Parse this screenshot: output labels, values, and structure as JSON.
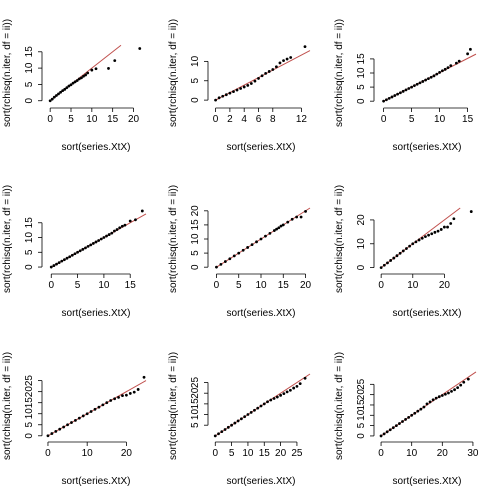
{
  "figure": {
    "background": "#ffffff",
    "point_color": "#000000",
    "line_color": "#c0504d"
  },
  "chart_data": [
    {
      "type": "scatter",
      "xlabel": "sort(series.XtX)",
      "ylabel": "sort(rchisq(n.iter, df = ii))",
      "xlim": [
        -1,
        23
      ],
      "ylim": [
        -1,
        18
      ],
      "xticks": [
        0,
        5,
        10,
        15,
        20
      ],
      "yticks": [
        0,
        5,
        10,
        15
      ],
      "points": [
        [
          0,
          0
        ],
        [
          0.5,
          0.5
        ],
        [
          1,
          1.1
        ],
        [
          1.5,
          1.6
        ],
        [
          2,
          2.1
        ],
        [
          2.5,
          2.6
        ],
        [
          3,
          3.1
        ],
        [
          3.5,
          3.5
        ],
        [
          4,
          4
        ],
        [
          4.5,
          4.5
        ],
        [
          5,
          4.9
        ],
        [
          5.5,
          5.4
        ],
        [
          6,
          5.8
        ],
        [
          6.5,
          6.2
        ],
        [
          7,
          6.7
        ],
        [
          7.5,
          7
        ],
        [
          8,
          7.5
        ],
        [
          8.5,
          7.9
        ],
        [
          9,
          8.5
        ],
        [
          10,
          9.4
        ],
        [
          11,
          9.8
        ],
        [
          14,
          9.9
        ],
        [
          15.5,
          12.3
        ],
        [
          21.5,
          16
        ]
      ],
      "ref_line": {
        "x": [
          0,
          17
        ],
        "y": [
          0,
          17
        ]
      }
    },
    {
      "type": "scatter",
      "xlabel": "sort(series.XtX)",
      "ylabel": "sort(rchisq(n.iter, df = ii))",
      "xlim": [
        -0.5,
        13.2
      ],
      "ylim": [
        -1,
        15
      ],
      "xticks": [
        0,
        2,
        4,
        6,
        8,
        12
      ],
      "yticks": [
        0,
        5,
        10
      ],
      "points": [
        [
          0,
          0
        ],
        [
          0.5,
          0.6
        ],
        [
          1,
          1
        ],
        [
          1.5,
          1.4
        ],
        [
          2,
          1.8
        ],
        [
          2.5,
          2.2
        ],
        [
          3,
          2.6
        ],
        [
          3.5,
          3
        ],
        [
          4,
          3.4
        ],
        [
          4.5,
          3.8
        ],
        [
          5,
          4.3
        ],
        [
          5.5,
          4.9
        ],
        [
          6,
          5.6
        ],
        [
          6.5,
          6.3
        ],
        [
          7,
          6.9
        ],
        [
          7.5,
          7.4
        ],
        [
          8,
          7.9
        ],
        [
          8.5,
          8.6
        ],
        [
          9,
          9.6
        ],
        [
          9.5,
          10.2
        ],
        [
          10,
          10.6
        ],
        [
          10.5,
          11
        ],
        [
          12.5,
          13.8
        ]
      ],
      "ref_line": {
        "x": [
          0,
          13.2
        ],
        "y": [
          0,
          12.8
        ]
      }
    },
    {
      "type": "scatter",
      "xlabel": "sort(series.XtX)",
      "ylabel": "sort(rchisq(n.iter, df = ii))",
      "xlim": [
        -1,
        16.5
      ],
      "ylim": [
        -1,
        21
      ],
      "xticks": [
        0,
        5,
        10,
        15
      ],
      "yticks": [
        0,
        5,
        10,
        15
      ],
      "points": [
        [
          0,
          0
        ],
        [
          0.5,
          0.5
        ],
        [
          1,
          1
        ],
        [
          1.5,
          1.5
        ],
        [
          2,
          2
        ],
        [
          2.5,
          2.5
        ],
        [
          3,
          3
        ],
        [
          3.5,
          3.5
        ],
        [
          4,
          4
        ],
        [
          4.5,
          4.5
        ],
        [
          5,
          5
        ],
        [
          5.5,
          5.5
        ],
        [
          6,
          6
        ],
        [
          6.5,
          6.5
        ],
        [
          7,
          7
        ],
        [
          7.5,
          7.5
        ],
        [
          8,
          8
        ],
        [
          8.5,
          8.5
        ],
        [
          9,
          9
        ],
        [
          9.5,
          9.6
        ],
        [
          10,
          10.2
        ],
        [
          10.5,
          10.8
        ],
        [
          11,
          11.3
        ],
        [
          11.5,
          11.9
        ],
        [
          12,
          12.6
        ],
        [
          13,
          13.5
        ],
        [
          13.5,
          14.2
        ],
        [
          15,
          16.8
        ],
        [
          15.5,
          18.4
        ]
      ],
      "ref_line": {
        "x": [
          0,
          16.5
        ],
        "y": [
          0,
          16.7
        ]
      }
    },
    {
      "type": "scatter",
      "xlabel": "sort(series.XtX)",
      "ylabel": "sort(rchisq(n.iter, df = ii))",
      "xlim": [
        -1,
        18
      ],
      "ylim": [
        -1,
        20
      ],
      "xticks": [
        0,
        5,
        10,
        15
      ],
      "yticks": [
        0,
        5,
        10,
        15
      ],
      "points": [
        [
          0,
          0
        ],
        [
          0.5,
          0.5
        ],
        [
          1,
          1
        ],
        [
          1.5,
          1.5
        ],
        [
          2,
          2
        ],
        [
          2.5,
          2.5
        ],
        [
          3,
          3
        ],
        [
          3.5,
          3.5
        ],
        [
          4,
          4
        ],
        [
          4.5,
          4.5
        ],
        [
          5,
          5
        ],
        [
          5.5,
          5.5
        ],
        [
          6,
          6
        ],
        [
          6.5,
          6.5
        ],
        [
          7,
          7
        ],
        [
          7.5,
          7.5
        ],
        [
          8,
          8
        ],
        [
          8.5,
          8.5
        ],
        [
          9,
          9
        ],
        [
          9.5,
          9.5
        ],
        [
          10,
          10
        ],
        [
          10.5,
          10.5
        ],
        [
          11,
          11
        ],
        [
          11.5,
          11.5
        ],
        [
          12,
          12.2
        ],
        [
          12.5,
          12.7
        ],
        [
          13,
          13.3
        ],
        [
          13.5,
          13.8
        ],
        [
          14,
          14.2
        ],
        [
          15,
          15.6
        ],
        [
          16,
          16
        ],
        [
          17.3,
          19
        ]
      ],
      "ref_line": {
        "x": [
          0,
          18
        ],
        "y": [
          0,
          18
        ]
      }
    },
    {
      "type": "scatter",
      "xlabel": "sort(series.XtX)",
      "ylabel": "sort(rchisq(n.iter, df = ii))",
      "xlim": [
        -1,
        21
      ],
      "ylim": [
        -1,
        21
      ],
      "xticks": [
        0,
        5,
        10,
        15,
        20
      ],
      "yticks": [
        0,
        5,
        10,
        15,
        20
      ],
      "points": [
        [
          0,
          0
        ],
        [
          1,
          1
        ],
        [
          2,
          2
        ],
        [
          3,
          3
        ],
        [
          4,
          4
        ],
        [
          5,
          5
        ],
        [
          6,
          6
        ],
        [
          7,
          7
        ],
        [
          8,
          8
        ],
        [
          9,
          9
        ],
        [
          10,
          10
        ],
        [
          11,
          11
        ],
        [
          12,
          12
        ],
        [
          13,
          13
        ],
        [
          13.5,
          13.5
        ],
        [
          14,
          14
        ],
        [
          14.5,
          14.6
        ],
        [
          15,
          15
        ],
        [
          16,
          16
        ],
        [
          17,
          17
        ],
        [
          18,
          17.8
        ],
        [
          19,
          17.8
        ],
        [
          20,
          19.8
        ]
      ],
      "ref_line": {
        "x": [
          0,
          21
        ],
        "y": [
          0,
          21
        ]
      }
    },
    {
      "type": "scatter",
      "xlabel": "sort(series.XtX)",
      "ylabel": "sort(rchisq(n.iter, df = ii))",
      "xlim": [
        -1,
        30
      ],
      "ylim": [
        -1,
        25
      ],
      "xticks": [
        0,
        10,
        20
      ],
      "yticks": [
        0,
        10,
        20
      ],
      "points": [
        [
          0,
          0
        ],
        [
          1,
          1
        ],
        [
          2,
          2
        ],
        [
          3,
          3
        ],
        [
          4,
          4
        ],
        [
          5,
          5
        ],
        [
          6,
          6
        ],
        [
          7,
          7
        ],
        [
          8,
          8
        ],
        [
          9,
          9
        ],
        [
          10,
          10
        ],
        [
          11,
          10.8
        ],
        [
          12,
          11.6
        ],
        [
          13,
          12.3
        ],
        [
          14,
          13
        ],
        [
          15,
          13.6
        ],
        [
          16,
          14.2
        ],
        [
          17,
          14.8
        ],
        [
          18,
          15.3
        ],
        [
          19,
          16
        ],
        [
          20,
          17
        ],
        [
          21,
          17
        ],
        [
          22,
          18.5
        ],
        [
          23,
          20.5
        ],
        [
          28.5,
          23.5
        ]
      ],
      "ref_line": {
        "x": [
          0,
          25
        ],
        "y": [
          0,
          25
        ]
      }
    },
    {
      "type": "scatter",
      "xlabel": "sort(series.XtX)",
      "ylabel": "sort(rchisq(n.iter, df = ii))",
      "xlim": [
        -0.5,
        25
      ],
      "ylim": [
        -1,
        28
      ],
      "xticks": [
        0,
        10,
        20
      ],
      "yticks": [
        0,
        5,
        10,
        15,
        20,
        25
      ],
      "points": [
        [
          0,
          0
        ],
        [
          1,
          1
        ],
        [
          2,
          2
        ],
        [
          3,
          3
        ],
        [
          4,
          4
        ],
        [
          5,
          5
        ],
        [
          6,
          6
        ],
        [
          7,
          7
        ],
        [
          8,
          8
        ],
        [
          9,
          9
        ],
        [
          10,
          10
        ],
        [
          11,
          11
        ],
        [
          12,
          12
        ],
        [
          13,
          13
        ],
        [
          14,
          14
        ],
        [
          15,
          15
        ],
        [
          16,
          16
        ],
        [
          17,
          16.8
        ],
        [
          18,
          17.4
        ],
        [
          19,
          18.2
        ],
        [
          20,
          18.4
        ],
        [
          21,
          19.2
        ],
        [
          22,
          19.8
        ],
        [
          23,
          21
        ],
        [
          24.5,
          26.5
        ]
      ],
      "ref_line": {
        "x": [
          0,
          25
        ],
        "y": [
          0,
          25
        ]
      }
    },
    {
      "type": "scatter",
      "xlabel": "sort(series.XtX)",
      "ylabel": "sort(rchisq(n.iter, df = ii))",
      "xlim": [
        -1,
        29
      ],
      "ylim": [
        -1,
        29
      ],
      "xticks": [
        0,
        5,
        10,
        15,
        20,
        25
      ],
      "yticks": [
        5,
        10,
        15,
        20,
        25
      ],
      "points": [
        [
          0,
          0
        ],
        [
          1,
          1
        ],
        [
          2,
          2
        ],
        [
          3,
          3
        ],
        [
          4,
          4
        ],
        [
          5,
          5
        ],
        [
          6,
          6
        ],
        [
          7,
          7
        ],
        [
          8,
          8
        ],
        [
          9,
          9
        ],
        [
          10,
          10
        ],
        [
          11,
          11
        ],
        [
          12,
          12
        ],
        [
          13,
          13
        ],
        [
          14,
          14
        ],
        [
          15,
          15
        ],
        [
          16,
          16
        ],
        [
          17,
          16.8
        ],
        [
          18,
          17.5
        ],
        [
          19,
          18.2
        ],
        [
          20,
          19
        ],
        [
          21,
          19.8
        ],
        [
          22,
          20.6
        ],
        [
          23,
          21.4
        ],
        [
          24,
          22.4
        ],
        [
          25,
          23.2
        ],
        [
          26,
          24.5
        ],
        [
          27.5,
          27
        ]
      ],
      "ref_line": {
        "x": [
          0,
          29
        ],
        "y": [
          0,
          29
        ]
      }
    },
    {
      "type": "scatter",
      "xlabel": "sort(series.XtX)",
      "ylabel": "sort(rchisq(n.iter, df = ii))",
      "xlim": [
        -1,
        31
      ],
      "ylim": [
        -1,
        30
      ],
      "xticks": [
        0,
        10,
        20,
        30
      ],
      "yticks": [
        0,
        5,
        10,
        15,
        20,
        25
      ],
      "points": [
        [
          0,
          0
        ],
        [
          1,
          1
        ],
        [
          2,
          2
        ],
        [
          3,
          3
        ],
        [
          4,
          4
        ],
        [
          5,
          5
        ],
        [
          6,
          6
        ],
        [
          7,
          7
        ],
        [
          8,
          8
        ],
        [
          9,
          9
        ],
        [
          10,
          10
        ],
        [
          11,
          11
        ],
        [
          12,
          12
        ],
        [
          13,
          13
        ],
        [
          14,
          14
        ],
        [
          15,
          15.5
        ],
        [
          16,
          16.5
        ],
        [
          17,
          17.5
        ],
        [
          18,
          18.3
        ],
        [
          19,
          19
        ],
        [
          20,
          19.6
        ],
        [
          21,
          20.2
        ],
        [
          22,
          20.8
        ],
        [
          23,
          21.6
        ],
        [
          24,
          22.4
        ],
        [
          25,
          23.4
        ],
        [
          26,
          24.6
        ],
        [
          27,
          26
        ],
        [
          28.5,
          27.5
        ]
      ],
      "ref_line": {
        "x": [
          0,
          31
        ],
        "y": [
          0,
          31
        ]
      }
    }
  ]
}
